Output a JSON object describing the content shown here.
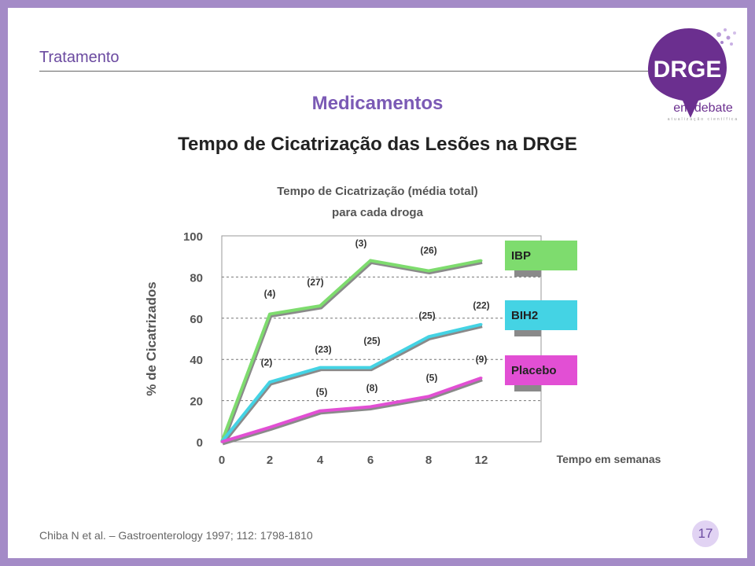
{
  "header": {
    "section": "Tratamento"
  },
  "logo": {
    "main": "DRGE",
    "sub": "em debate",
    "tagline": "atualização científica"
  },
  "heading": "Medicamentos",
  "subheading": "Tempo de Cicatrização das Lesões na DRGE",
  "chart_data": {
    "type": "line",
    "title_line1": "Tempo de Cicatrização (média total)",
    "title_line2": "para cada droga",
    "ylabel": "% de Cicatrizados",
    "xlabel": "Tempo em semanas",
    "ylim": [
      0,
      100
    ],
    "y_ticks": [
      "0",
      "20",
      "40",
      "60",
      "80",
      "100"
    ],
    "x": [
      "0",
      "2",
      "4",
      "6",
      "8",
      "12"
    ],
    "grid": true,
    "series": [
      {
        "name": "IBP",
        "color": "#7edc6e",
        "values": [
          0,
          62,
          66,
          88,
          83,
          88
        ],
        "labels": [
          "",
          "(4)",
          "(27)",
          "(3)",
          "(26)",
          ""
        ]
      },
      {
        "name": "BIH2",
        "color": "#44d3e4",
        "values": [
          0,
          29,
          36,
          36,
          51,
          57
        ],
        "labels": [
          "",
          "(2)",
          "(23)",
          "(25)",
          "(25)",
          "(22)"
        ]
      },
      {
        "name": "Placebo",
        "color": "#e24fd4",
        "values": [
          0,
          7,
          15,
          17,
          22,
          31
        ],
        "labels": [
          "",
          "",
          "(5)",
          "(8)",
          "(5)",
          "(9)"
        ]
      }
    ],
    "legend_position": "right"
  },
  "footer": {
    "citation": "Chiba N et al. – Gastroenterology 1997; 112: 1798-1810",
    "page": "17"
  }
}
